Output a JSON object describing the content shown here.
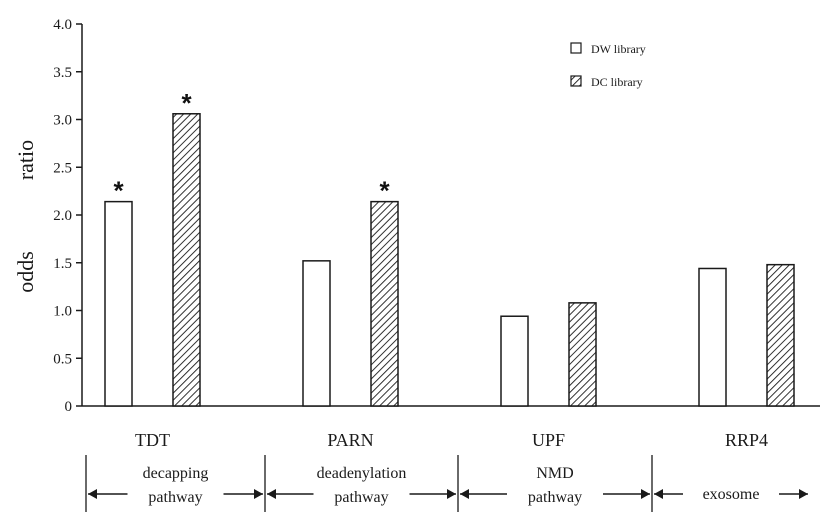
{
  "chart_data": {
    "type": "bar",
    "ylabel": "odds ratio",
    "ylim": [
      0,
      4.0
    ],
    "yticks": [
      "0",
      "0.5",
      "1.0",
      "1.5",
      "2.0",
      "2.5",
      "3.0",
      "3.5",
      "4.0"
    ],
    "categories": [
      "TDT",
      "PARN",
      "UPF",
      "RRP4"
    ],
    "series": [
      {
        "name": "DW library",
        "pattern": "open",
        "values": [
          2.14,
          1.52,
          0.94,
          1.44
        ],
        "significant": [
          true,
          false,
          false,
          false
        ]
      },
      {
        "name": "DC library",
        "pattern": "hatched",
        "values": [
          3.06,
          2.14,
          1.08,
          1.48
        ],
        "significant": [
          true,
          true,
          false,
          false
        ]
      }
    ],
    "significance_marker": "*",
    "groups": [
      {
        "label_lines": [
          "decapping",
          "pathway"
        ]
      },
      {
        "label_lines": [
          "deadenylation",
          "pathway"
        ]
      },
      {
        "label_lines": [
          "NMD",
          "pathway"
        ]
      },
      {
        "label_lines": [
          "exosome"
        ]
      }
    ],
    "legend_position": "top-right",
    "grid": false
  },
  "colors": {
    "axis": "#1a1a1a",
    "bar_fill": "#ffffff",
    "bar_stroke": "#1a1a1a",
    "hatch": "#1a1a1a"
  }
}
